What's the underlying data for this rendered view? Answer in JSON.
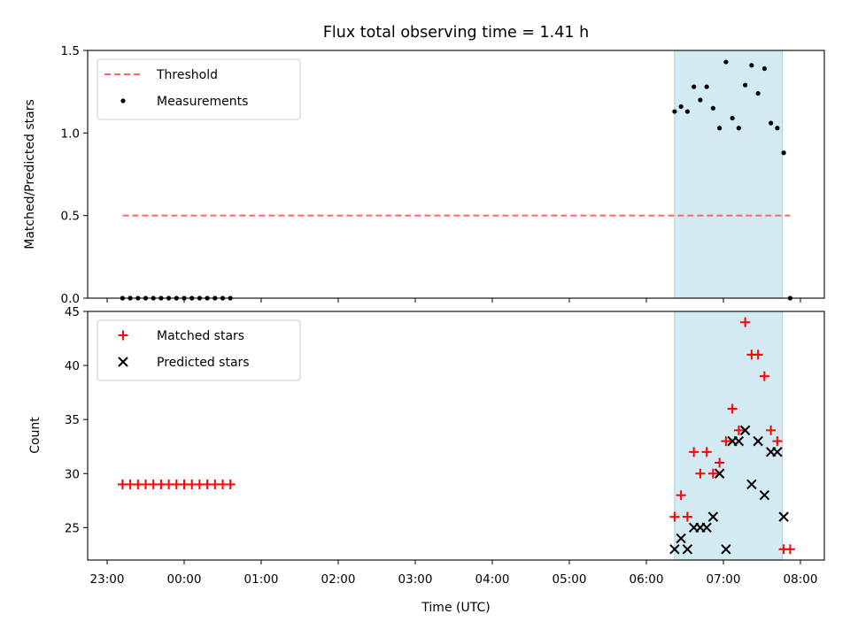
{
  "chart_data": {
    "type": "scatter",
    "title": "Flux total observing time = 1.41 h",
    "xlabel": "Time (UTC)",
    "x_ticks": [
      "23:00",
      "00:00",
      "01:00",
      "02:00",
      "03:00",
      "04:00",
      "05:00",
      "06:00",
      "07:00",
      "08:00"
    ],
    "highlight_span": {
      "start": "06:22",
      "end": "07:46",
      "color": "#add8e6"
    },
    "panels": [
      {
        "id": "top",
        "ylabel": "Matched/Predicted stars",
        "ylim": [
          0.0,
          1.5
        ],
        "y_ticks": [
          "0.0",
          "0.5",
          "1.0",
          "1.5"
        ],
        "legend_position": "upper-left",
        "threshold": {
          "name": "Threshold",
          "value": 0.5,
          "x_start": "23:12",
          "x_end": "07:52",
          "color": "#ff6666"
        },
        "series": [
          {
            "name": "Measurements",
            "marker": "dot",
            "color": "#000000",
            "points": [
              [
                "23:12",
                0.0
              ],
              [
                "23:18",
                0.0
              ],
              [
                "23:24",
                0.0
              ],
              [
                "23:30",
                0.0
              ],
              [
                "23:36",
                0.0
              ],
              [
                "23:42",
                0.0
              ],
              [
                "23:48",
                0.0
              ],
              [
                "23:54",
                0.0
              ],
              [
                "00:00",
                0.0
              ],
              [
                "00:06",
                0.0
              ],
              [
                "00:12",
                0.0
              ],
              [
                "00:18",
                0.0
              ],
              [
                "00:24",
                0.0
              ],
              [
                "00:30",
                0.0
              ],
              [
                "00:36",
                0.0
              ],
              [
                "06:22",
                1.13
              ],
              [
                "06:27",
                1.16
              ],
              [
                "06:32",
                1.13
              ],
              [
                "06:37",
                1.28
              ],
              [
                "06:42",
                1.2
              ],
              [
                "06:47",
                1.28
              ],
              [
                "06:52",
                1.15
              ],
              [
                "06:57",
                1.03
              ],
              [
                "07:02",
                1.43
              ],
              [
                "07:07",
                1.09
              ],
              [
                "07:12",
                1.03
              ],
              [
                "07:17",
                1.29
              ],
              [
                "07:22",
                1.41
              ],
              [
                "07:27",
                1.24
              ],
              [
                "07:32",
                1.39
              ],
              [
                "07:37",
                1.06
              ],
              [
                "07:42",
                1.03
              ],
              [
                "07:47",
                0.88
              ],
              [
                "07:52",
                0.0
              ]
            ]
          }
        ]
      },
      {
        "id": "bottom",
        "ylabel": "Count",
        "ylim": [
          22,
          45
        ],
        "y_ticks": [
          "25",
          "30",
          "35",
          "40",
          "45"
        ],
        "legend_position": "upper-left",
        "series": [
          {
            "name": "Matched stars",
            "marker": "plus",
            "color": "#ff0000",
            "points": [
              [
                "23:12",
                29
              ],
              [
                "23:18",
                29
              ],
              [
                "23:24",
                29
              ],
              [
                "23:30",
                29
              ],
              [
                "23:36",
                29
              ],
              [
                "23:42",
                29
              ],
              [
                "23:48",
                29
              ],
              [
                "23:54",
                29
              ],
              [
                "00:00",
                29
              ],
              [
                "00:06",
                29
              ],
              [
                "00:12",
                29
              ],
              [
                "00:18",
                29
              ],
              [
                "00:24",
                29
              ],
              [
                "00:30",
                29
              ],
              [
                "00:36",
                29
              ],
              [
                "06:22",
                26
              ],
              [
                "06:27",
                28
              ],
              [
                "06:32",
                26
              ],
              [
                "06:37",
                32
              ],
              [
                "06:42",
                30
              ],
              [
                "06:47",
                32
              ],
              [
                "06:52",
                30
              ],
              [
                "06:57",
                31
              ],
              [
                "07:02",
                33
              ],
              [
                "07:07",
                36
              ],
              [
                "07:12",
                34
              ],
              [
                "07:17",
                44
              ],
              [
                "07:22",
                41
              ],
              [
                "07:27",
                41
              ],
              [
                "07:32",
                39
              ],
              [
                "07:37",
                34
              ],
              [
                "07:42",
                33
              ],
              [
                "07:47",
                23
              ],
              [
                "07:52",
                23
              ]
            ]
          },
          {
            "name": "Predicted stars",
            "marker": "x",
            "color": "#000000",
            "points": [
              [
                "06:22",
                23
              ],
              [
                "06:27",
                24
              ],
              [
                "06:32",
                23
              ],
              [
                "06:37",
                25
              ],
              [
                "06:42",
                25
              ],
              [
                "06:47",
                25
              ],
              [
                "06:52",
                26
              ],
              [
                "06:57",
                30
              ],
              [
                "07:02",
                23
              ],
              [
                "07:07",
                33
              ],
              [
                "07:12",
                33
              ],
              [
                "07:17",
                34
              ],
              [
                "07:22",
                29
              ],
              [
                "07:27",
                33
              ],
              [
                "07:32",
                28
              ],
              [
                "07:37",
                32
              ],
              [
                "07:42",
                32
              ],
              [
                "07:47",
                26
              ]
            ]
          }
        ]
      }
    ]
  }
}
